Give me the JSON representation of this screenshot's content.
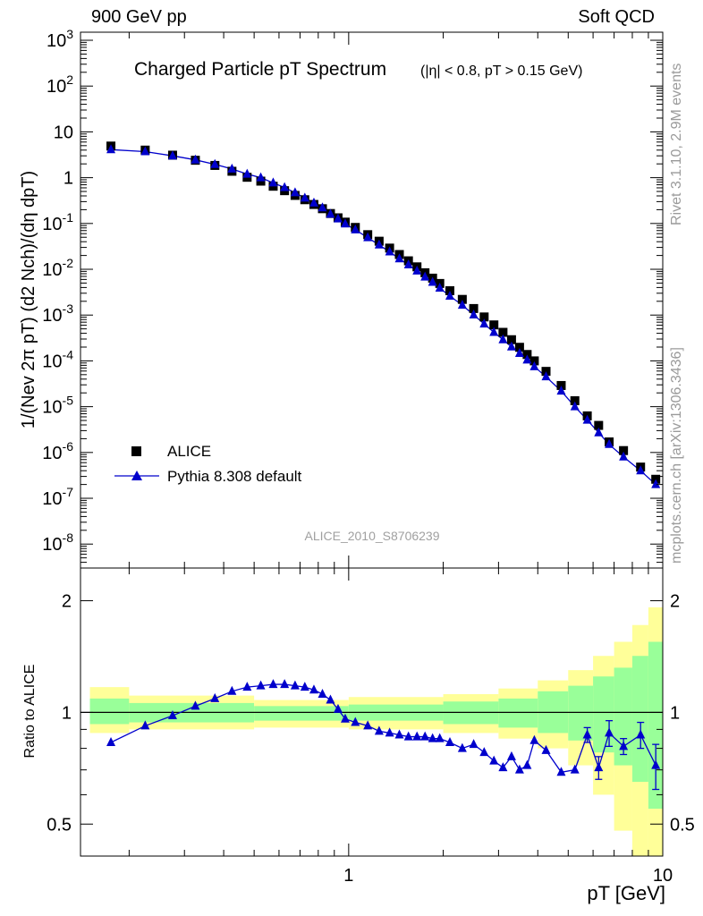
{
  "header": {
    "left": "900 GeV pp",
    "right": "Soft QCD"
  },
  "side_labels": {
    "rivet": "Rivet 3.1.10,  2.9M events",
    "mcplots": "mcplots.cern.ch [arXiv:1306.3436]"
  },
  "analysis_tag": "ALICE_2010_S8706239",
  "colors": {
    "data": "#000000",
    "mc": "#0000cc",
    "band_outer": "#ffff99",
    "band_inner": "#99ff99"
  },
  "chart_data": [
    {
      "type": "scatter",
      "title": "Charged Particle pT Spectrum",
      "subtitle": "(|η| < 0.8, pT > 0.15 GeV)",
      "xlabel": "pT [GeV]",
      "ylabel": "1/(Nev 2π pT) (d2 Nch)/(dη dpT)",
      "xscale": "log",
      "yscale": "log",
      "xlim": [
        0.14,
        10.0
      ],
      "ylim": [
        3e-09,
        1500
      ],
      "yticks": [
        "10^-8",
        "10^-7",
        "10^-6",
        "10^-5",
        "10^-4",
        "10^-3",
        "10^-2",
        "10^-1",
        "1",
        "10",
        "10^2",
        "10^3"
      ],
      "xticks": [
        "1",
        "10"
      ],
      "legend": "bottom-left",
      "series": [
        {
          "name": "ALICE",
          "marker": "square",
          "points": [
            [
              0.175,
              4.9
            ],
            [
              0.225,
              4.0
            ],
            [
              0.275,
              3.1
            ],
            [
              0.325,
              2.4
            ],
            [
              0.375,
              1.85
            ],
            [
              0.425,
              1.38
            ],
            [
              0.475,
              1.02
            ],
            [
              0.525,
              0.84
            ],
            [
              0.575,
              0.65
            ],
            [
              0.625,
              0.52
            ],
            [
              0.675,
              0.41
            ],
            [
              0.725,
              0.33
            ],
            [
              0.775,
              0.26
            ],
            [
              0.825,
              0.21
            ],
            [
              0.875,
              0.165
            ],
            [
              0.925,
              0.133
            ],
            [
              0.975,
              0.107
            ],
            [
              1.05,
              0.082
            ],
            [
              1.15,
              0.057
            ],
            [
              1.25,
              0.041
            ],
            [
              1.35,
              0.029
            ],
            [
              1.45,
              0.021
            ],
            [
              1.55,
              0.0153
            ],
            [
              1.65,
              0.0113
            ],
            [
              1.75,
              0.0084
            ],
            [
              1.85,
              0.0064
            ],
            [
              1.95,
              0.0049
            ],
            [
              2.1,
              0.0034
            ],
            [
              2.3,
              0.0022
            ],
            [
              2.5,
              0.00139
            ],
            [
              2.7,
              0.00091
            ],
            [
              2.9,
              0.00061
            ],
            [
              3.1,
              0.00042
            ],
            [
              3.3,
              0.00029
            ],
            [
              3.5,
              0.000198
            ],
            [
              3.7,
              0.000138
            ],
            [
              3.9,
              0.0001
            ],
            [
              4.25,
              5.9e-05
            ],
            [
              4.75,
              2.9e-05
            ],
            [
              5.25,
              1.35e-05
            ],
            [
              5.75,
              6.3e-06
            ],
            [
              6.25,
              3.9e-06
            ],
            [
              6.75,
              1.7e-06
            ],
            [
              7.5,
              1.1e-06
            ],
            [
              8.5,
              4.8e-07
            ],
            [
              9.5,
              2.6e-07
            ]
          ]
        },
        {
          "name": "Pythia 8.308 default",
          "marker": "triangle",
          "points": [
            [
              0.175,
              4.1
            ],
            [
              0.225,
              3.7
            ],
            [
              0.275,
              3.0
            ],
            [
              0.325,
              2.45
            ],
            [
              0.375,
              1.95
            ],
            [
              0.425,
              1.55
            ],
            [
              0.475,
              1.2
            ],
            [
              0.525,
              1.0
            ],
            [
              0.575,
              0.77
            ],
            [
              0.625,
              0.61
            ],
            [
              0.675,
              0.47
            ],
            [
              0.725,
              0.36
            ],
            [
              0.775,
              0.28
            ],
            [
              0.825,
              0.22
            ],
            [
              0.875,
              0.16
            ],
            [
              0.925,
              0.126
            ],
            [
              0.975,
              0.098
            ],
            [
              1.05,
              0.073
            ],
            [
              1.15,
              0.049
            ],
            [
              1.25,
              0.034
            ],
            [
              1.35,
              0.024
            ],
            [
              1.45,
              0.017
            ],
            [
              1.55,
              0.0125
            ],
            [
              1.65,
              0.0092
            ],
            [
              1.75,
              0.0068
            ],
            [
              1.85,
              0.0052
            ],
            [
              1.95,
              0.0039
            ],
            [
              2.1,
              0.0026
            ],
            [
              2.3,
              0.00165
            ],
            [
              2.5,
              0.00101
            ],
            [
              2.7,
              0.00064
            ],
            [
              2.9,
              0.00042
            ],
            [
              3.1,
              0.00029
            ],
            [
              3.3,
              0.000202
            ],
            [
              3.5,
              0.000146
            ],
            [
              3.7,
              0.000105
            ],
            [
              3.9,
              7.5e-05
            ],
            [
              4.25,
              4.5e-05
            ],
            [
              4.75,
              2.2e-05
            ],
            [
              5.25,
              1e-05
            ],
            [
              5.75,
              5.1e-06
            ],
            [
              6.25,
              2.7e-06
            ],
            [
              6.75,
              1.5e-06
            ],
            [
              7.5,
              8e-07
            ],
            [
              8.5,
              4e-07
            ],
            [
              9.5,
              2e-07
            ]
          ]
        }
      ]
    },
    {
      "type": "line",
      "title": "",
      "xlabel": "pT [GeV]",
      "ylabel": "Ratio to ALICE",
      "xscale": "log",
      "yscale": "log",
      "xlim": [
        0.14,
        10.0
      ],
      "ylim": [
        0.41,
        2.45
      ],
      "yticks": [
        "0.5",
        "1",
        "2"
      ],
      "xticks": [
        "1",
        "10"
      ],
      "reference_line": 1.0,
      "bands": [
        {
          "x_range": [
            0.15,
            0.2
          ],
          "outer": [
            0.88,
            1.17
          ],
          "inner": [
            0.93,
            1.09
          ]
        },
        {
          "x_range": [
            0.2,
            0.5
          ],
          "outer": [
            0.9,
            1.11
          ],
          "inner": [
            0.94,
            1.06
          ]
        },
        {
          "x_range": [
            0.5,
            1.0
          ],
          "outer": [
            0.91,
            1.08
          ],
          "inner": [
            0.95,
            1.04
          ]
        },
        {
          "x_range": [
            1.0,
            2.0
          ],
          "outer": [
            0.9,
            1.1
          ],
          "inner": [
            0.95,
            1.05
          ]
        },
        {
          "x_range": [
            2.0,
            3.0
          ],
          "outer": [
            0.88,
            1.12
          ],
          "inner": [
            0.93,
            1.07
          ]
        },
        {
          "x_range": [
            3.0,
            4.0
          ],
          "outer": [
            0.85,
            1.16
          ],
          "inner": [
            0.91,
            1.09
          ]
        },
        {
          "x_range": [
            4.0,
            5.0
          ],
          "outer": [
            0.8,
            1.22
          ],
          "inner": [
            0.88,
            1.14
          ]
        },
        {
          "x_range": [
            5.0,
            6.0
          ],
          "outer": [
            0.72,
            1.3
          ],
          "inner": [
            0.84,
            1.18
          ]
        },
        {
          "x_range": [
            6.0,
            7.0
          ],
          "outer": [
            0.6,
            1.42
          ],
          "inner": [
            0.78,
            1.25
          ]
        },
        {
          "x_range": [
            7.0,
            8.0
          ],
          "outer": [
            0.48,
            1.55
          ],
          "inner": [
            0.72,
            1.32
          ]
        },
        {
          "x_range": [
            8.0,
            9.0
          ],
          "outer": [
            0.4,
            1.72
          ],
          "inner": [
            0.65,
            1.42
          ]
        },
        {
          "x_range": [
            9.0,
            10.0
          ],
          "outer": [
            0.4,
            1.92
          ],
          "inner": [
            0.55,
            1.55
          ]
        }
      ],
      "series": [
        {
          "name": "Pythia 8.308 default",
          "marker": "triangle",
          "points": [
            [
              0.175,
              0.83
            ],
            [
              0.225,
              0.92
            ],
            [
              0.275,
              0.98
            ],
            [
              0.325,
              1.04
            ],
            [
              0.375,
              1.09
            ],
            [
              0.425,
              1.14
            ],
            [
              0.475,
              1.17
            ],
            [
              0.525,
              1.18
            ],
            [
              0.575,
              1.19
            ],
            [
              0.625,
              1.19
            ],
            [
              0.675,
              1.18
            ],
            [
              0.725,
              1.17
            ],
            [
              0.775,
              1.15
            ],
            [
              0.825,
              1.12
            ],
            [
              0.875,
              1.08
            ],
            [
              0.925,
              1.02
            ],
            [
              0.975,
              0.96
            ],
            [
              1.05,
              0.94
            ],
            [
              1.15,
              0.92
            ],
            [
              1.25,
              0.89
            ],
            [
              1.35,
              0.88
            ],
            [
              1.45,
              0.87
            ],
            [
              1.55,
              0.86
            ],
            [
              1.65,
              0.86
            ],
            [
              1.75,
              0.86
            ],
            [
              1.85,
              0.85
            ],
            [
              1.95,
              0.85
            ],
            [
              2.1,
              0.83
            ],
            [
              2.3,
              0.8
            ],
            [
              2.5,
              0.82
            ],
            [
              2.7,
              0.78
            ],
            [
              2.9,
              0.74
            ],
            [
              3.1,
              0.71
            ],
            [
              3.3,
              0.76
            ],
            [
              3.5,
              0.7
            ],
            [
              3.7,
              0.72
            ],
            [
              3.9,
              0.84
            ],
            [
              4.25,
              0.79
            ],
            [
              4.75,
              0.69
            ],
            [
              5.25,
              0.7
            ],
            [
              5.75,
              0.87
            ],
            [
              6.25,
              0.71
            ],
            [
              6.75,
              0.88
            ],
            [
              7.5,
              0.81
            ],
            [
              8.5,
              0.87
            ],
            [
              9.5,
              0.72
            ]
          ],
          "errors": [
            [
              7.5,
              0.04
            ],
            [
              8.5,
              0.07
            ],
            [
              9.5,
              0.1
            ],
            [
              6.75,
              0.07
            ],
            [
              6.25,
              0.05
            ],
            [
              5.75,
              0.04
            ]
          ]
        }
      ]
    }
  ]
}
